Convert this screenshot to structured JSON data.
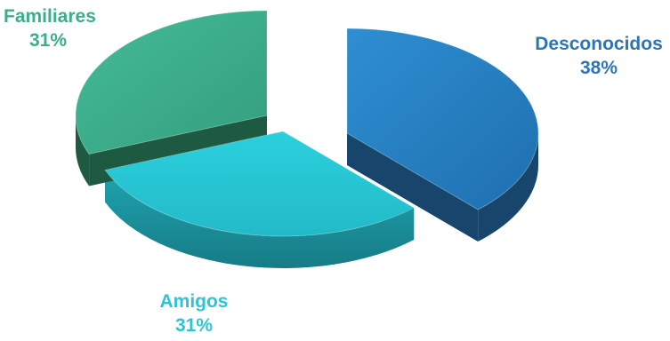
{
  "chart_data": {
    "type": "pie",
    "style": "3d-exploded",
    "categories": [
      "Desconocidos",
      "Amigos",
      "Familiares"
    ],
    "values": [
      38,
      31,
      31
    ],
    "value_labels": [
      "38%",
      "31%",
      "31%"
    ],
    "colors": {
      "Desconocidos": {
        "top": "#2585C7",
        "side": "#17456B"
      },
      "Amigos": {
        "top": "#27C6D4",
        "side": "#1C8E98"
      },
      "Familiares": {
        "top": "#3BAE8C",
        "side": "#1E5A42"
      }
    },
    "label_colors": {
      "Desconocidos": "#2E75B6",
      "Amigos": "#2EC4D4",
      "Familiares": "#3BAE8C"
    },
    "legend": "none"
  }
}
